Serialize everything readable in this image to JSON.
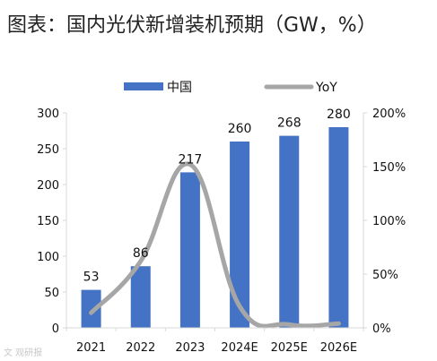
{
  "title": "图表：国内光伏新增装机预期（GW，%）",
  "watermark": "文 观研报",
  "colors": {
    "bar": "#4472C4",
    "line": "#A6A6A6",
    "axis": "#D9D9D9"
  },
  "chart_data": {
    "type": "bar",
    "categories": [
      "2021",
      "2022",
      "2023",
      "2024E",
      "2025E",
      "2026E"
    ],
    "series": [
      {
        "name": "中国",
        "type": "bar",
        "axis": "left",
        "values": [
          53,
          86,
          217,
          260,
          268,
          280
        ]
      },
      {
        "name": "YoY",
        "type": "line",
        "axis": "right",
        "values": [
          14,
          62,
          152,
          20,
          3,
          4
        ]
      }
    ],
    "data_labels": [
      "53",
      "86",
      "217",
      "260",
      "268",
      "280"
    ],
    "y_left": {
      "min": 0,
      "max": 300,
      "ticks": [
        0,
        50,
        100,
        150,
        200,
        250,
        300
      ]
    },
    "y_right": {
      "min": 0,
      "max": 200,
      "ticks": [
        0,
        50,
        100,
        150,
        200
      ],
      "tick_labels": [
        "0%",
        "50%",
        "100%",
        "150%",
        "200%"
      ]
    },
    "legend": "top",
    "grid": false
  }
}
